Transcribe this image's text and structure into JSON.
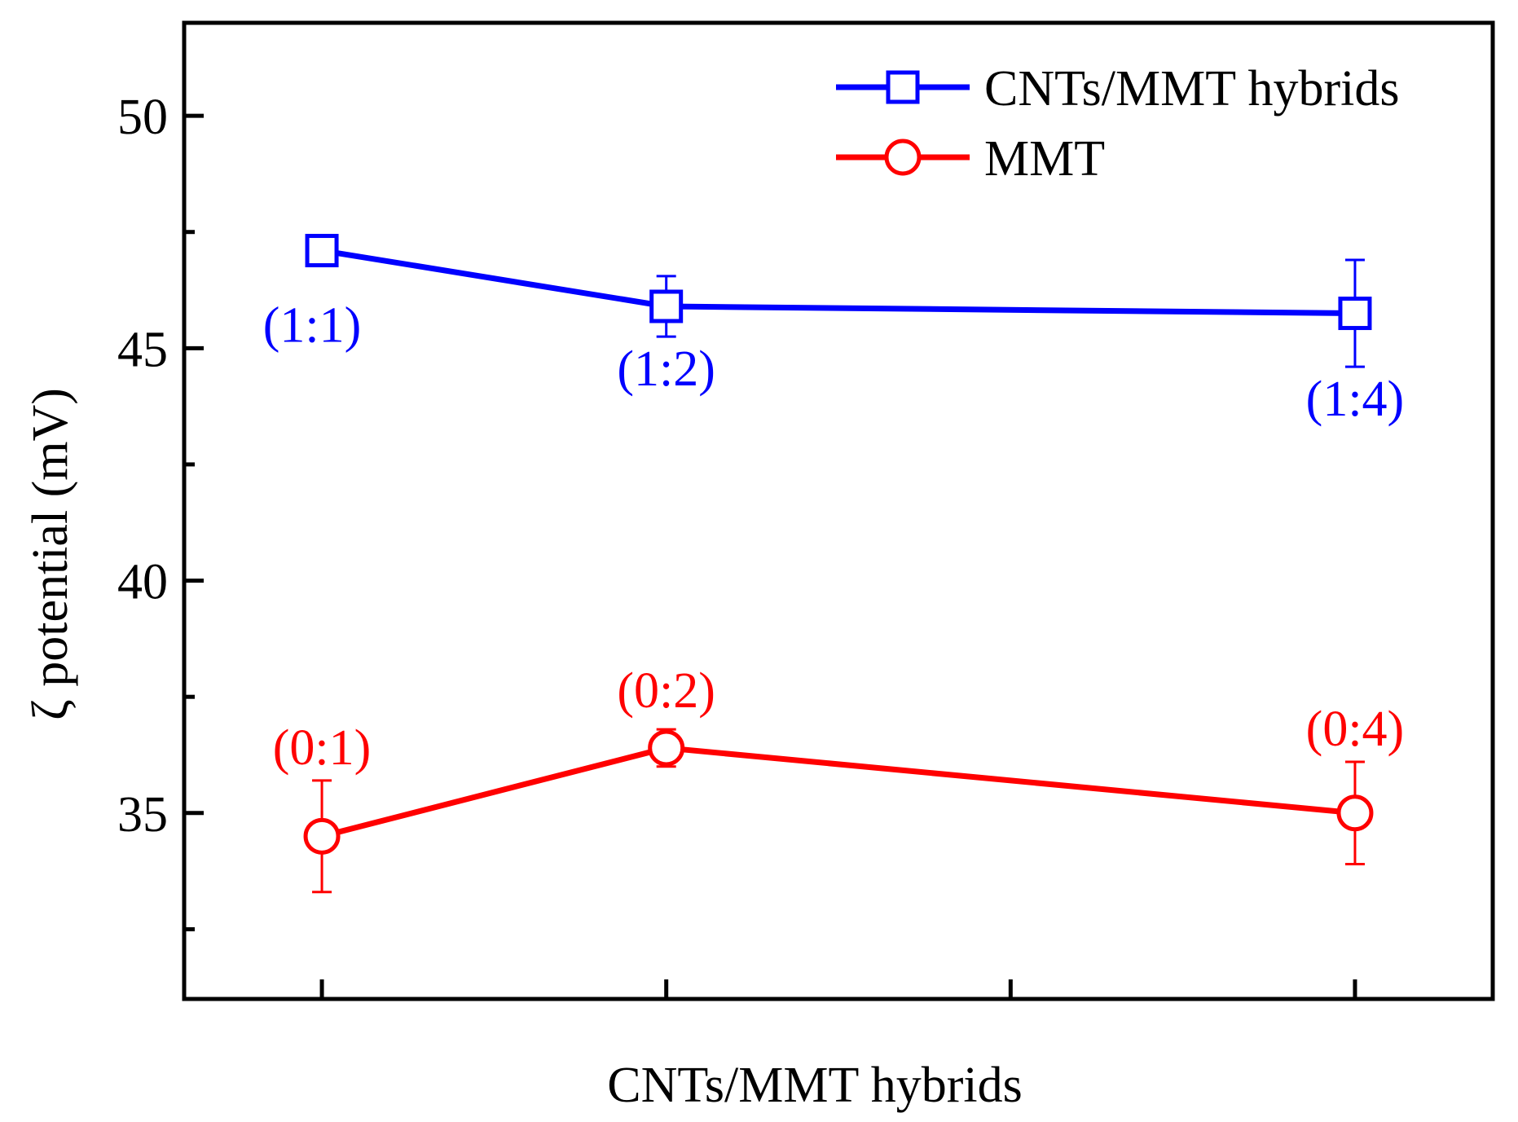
{
  "chart_data": {
    "type": "line",
    "title": "",
    "xlabel": "CNTs/MMT hybrids",
    "ylabel": "ζ potential (mV)",
    "x_positions": [
      1,
      2,
      3,
      4
    ],
    "xlim": [
      0.6,
      4.4
    ],
    "ylim": [
      31,
      52
    ],
    "y_ticks_major": [
      35,
      40,
      45,
      50
    ],
    "y_ticks_minor": [
      32.5,
      37.5,
      42.5,
      47.5
    ],
    "x_ticks": [
      1,
      2,
      3,
      4
    ],
    "grid": false,
    "legend_position": "top-right",
    "series": [
      {
        "name": "CNTs/MMT hybrids",
        "color": "#0000ff",
        "marker": "square",
        "points": [
          {
            "x": 1,
            "y": 47.1,
            "err": 0,
            "label": "(1:1)",
            "label_pos": "below-left"
          },
          {
            "x": 2,
            "y": 45.9,
            "err": 0.65,
            "label": "(1:2)",
            "label_pos": "below"
          },
          {
            "x": 4,
            "y": 45.75,
            "err": 1.15,
            "label": "(1:4)",
            "label_pos": "below"
          }
        ]
      },
      {
        "name": "MMT",
        "color": "#ff0000",
        "marker": "circle",
        "points": [
          {
            "x": 1,
            "y": 34.5,
            "err": 1.2,
            "label": "(0:1)",
            "label_pos": "above"
          },
          {
            "x": 2,
            "y": 36.4,
            "err": 0.4,
            "label": "(0:2)",
            "label_pos": "above"
          },
          {
            "x": 4,
            "y": 35.0,
            "err": 1.1,
            "label": "(0:4)",
            "label_pos": "above"
          }
        ]
      }
    ]
  }
}
